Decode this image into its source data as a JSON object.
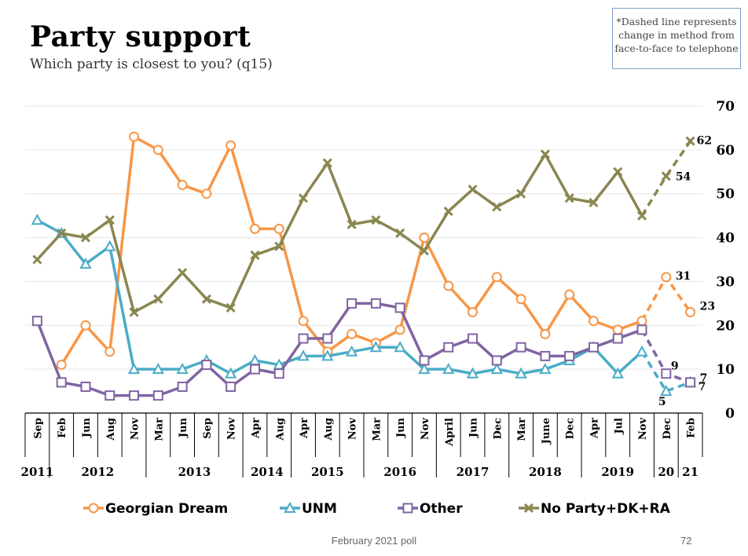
{
  "header": {
    "title": "Party support",
    "subtitle": "Which party is closest to you? (q15)",
    "note": "*Dashed line represents change in method from face-to-face to telephone"
  },
  "footer": {
    "text": "February 2021 poll",
    "page": "72"
  },
  "chart_data": {
    "type": "line",
    "title": "Party support",
    "subtitle": "Which party is closest to you? (q15)",
    "ylim": [
      0,
      70
    ],
    "yticks": [
      0,
      10,
      20,
      30,
      40,
      50,
      60,
      70
    ],
    "grid": true,
    "legend_position": "bottom",
    "categories": [
      "Sep",
      "Feb",
      "Jun",
      "Aug",
      "Nov",
      "Mar",
      "Jun",
      "Sep",
      "Nov",
      "Apr",
      "Aug",
      "Apr",
      "Aug",
      "Nov",
      "Mar",
      "Jun",
      "Nov",
      "April",
      "Jun",
      "Dec",
      "Mar",
      "June",
      "Dec",
      "Apr",
      "Jul",
      "Nov",
      "Dec",
      "Feb"
    ],
    "years": [
      {
        "label": "2011",
        "start": 0,
        "end": 0
      },
      {
        "label": "2012",
        "start": 1,
        "end": 4
      },
      {
        "label": "2013",
        "start": 5,
        "end": 8
      },
      {
        "label": "2014",
        "start": 9,
        "end": 10
      },
      {
        "label": "2015",
        "start": 11,
        "end": 13
      },
      {
        "label": "2016",
        "start": 14,
        "end": 16
      },
      {
        "label": "2017",
        "start": 17,
        "end": 19
      },
      {
        "label": "2018",
        "start": 20,
        "end": 22
      },
      {
        "label": "2019",
        "start": 23,
        "end": 25
      },
      {
        "label": "20",
        "start": 26,
        "end": 26
      },
      {
        "label": "21",
        "start": 27,
        "end": 27
      }
    ],
    "dashed_from_index": 25,
    "series": [
      {
        "name": "Georgian Dream",
        "color": "#f79646",
        "marker": "circle",
        "values": [
          null,
          11,
          20,
          14,
          63,
          60,
          52,
          50,
          61,
          42,
          42,
          21,
          14,
          18,
          16,
          19,
          40,
          29,
          23,
          31,
          26,
          18,
          27,
          21,
          19,
          21,
          31,
          23
        ],
        "end_labels": [
          {
            "index": 26,
            "text": "31"
          },
          {
            "index": 27,
            "text": "23"
          }
        ]
      },
      {
        "name": "UNM",
        "color": "#4bacc6",
        "marker": "triangle",
        "values": [
          44,
          41,
          34,
          38,
          10,
          10,
          10,
          12,
          9,
          12,
          11,
          13,
          13,
          14,
          15,
          15,
          10,
          10,
          9,
          10,
          9,
          10,
          12,
          15,
          9,
          14,
          5,
          7
        ],
        "end_labels": [
          {
            "index": 26,
            "text": "5"
          },
          {
            "index": 27,
            "text": "7"
          }
        ]
      },
      {
        "name": "Other",
        "color": "#8064a2",
        "marker": "square",
        "values": [
          21,
          7,
          6,
          4,
          4,
          4,
          6,
          11,
          6,
          10,
          9,
          17,
          17,
          25,
          25,
          24,
          12,
          15,
          17,
          12,
          15,
          13,
          13,
          15,
          17,
          19,
          9,
          7
        ],
        "end_labels": [
          {
            "index": 26,
            "text": "9"
          },
          {
            "index": 27,
            "text": "7"
          }
        ]
      },
      {
        "name": "No Party+DK+RA",
        "color": "#8a8650",
        "marker": "x",
        "values": [
          35,
          41,
          40,
          44,
          23,
          26,
          32,
          26,
          24,
          36,
          38,
          49,
          57,
          43,
          44,
          41,
          37,
          46,
          51,
          47,
          50,
          59,
          49,
          48,
          55,
          45,
          54,
          62
        ],
        "end_labels": [
          {
            "index": 26,
            "text": "54"
          },
          {
            "index": 27,
            "text": "62"
          }
        ]
      }
    ]
  }
}
